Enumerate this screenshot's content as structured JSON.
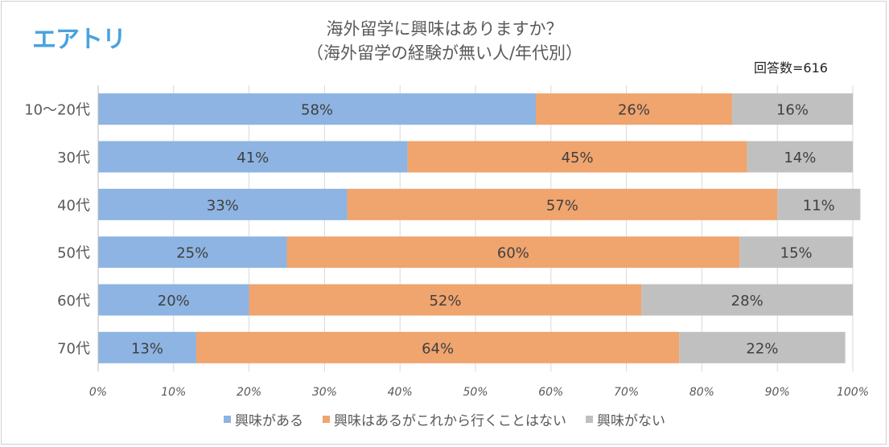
{
  "logo": {
    "text": "エアトリ"
  },
  "header": {
    "title_line1": "海外留学に興味はありますか？",
    "title_line2": "（海外留学の経験が無い人/年代別）",
    "respondents": "回答数=616"
  },
  "colors": {
    "series1": "#8db4e2",
    "series2": "#f0a46e",
    "series3": "#c0c0c0",
    "grid": "#d9d9d9",
    "text": "#595959"
  },
  "chart_data": {
    "type": "bar",
    "orientation": "horizontal",
    "stacked": true,
    "categories": [
      "10〜20代",
      "30代",
      "40代",
      "50代",
      "60代",
      "70代"
    ],
    "series": [
      {
        "name": "興味がある",
        "values": [
          58,
          41,
          33,
          25,
          20,
          13
        ],
        "labels": [
          "58%",
          "41%",
          "33%",
          "25%",
          "20%",
          "13%"
        ]
      },
      {
        "name": "興味はあるがこれから行くことはない",
        "values": [
          26,
          45,
          57,
          60,
          52,
          64
        ],
        "labels": [
          "26%",
          "45%",
          "57%",
          "60%",
          "52%",
          "64%"
        ]
      },
      {
        "name": "興味がない",
        "values": [
          16,
          14,
          11,
          15,
          28,
          22
        ],
        "labels": [
          "16%",
          "14%",
          "11%",
          "15%",
          "28%",
          "22%"
        ]
      }
    ],
    "xlim": [
      0,
      100
    ],
    "xticks": [
      "0%",
      "10%",
      "20%",
      "30%",
      "40%",
      "50%",
      "60%",
      "70%",
      "80%",
      "90%",
      "100%"
    ],
    "grid": true,
    "legend_position": "bottom"
  }
}
